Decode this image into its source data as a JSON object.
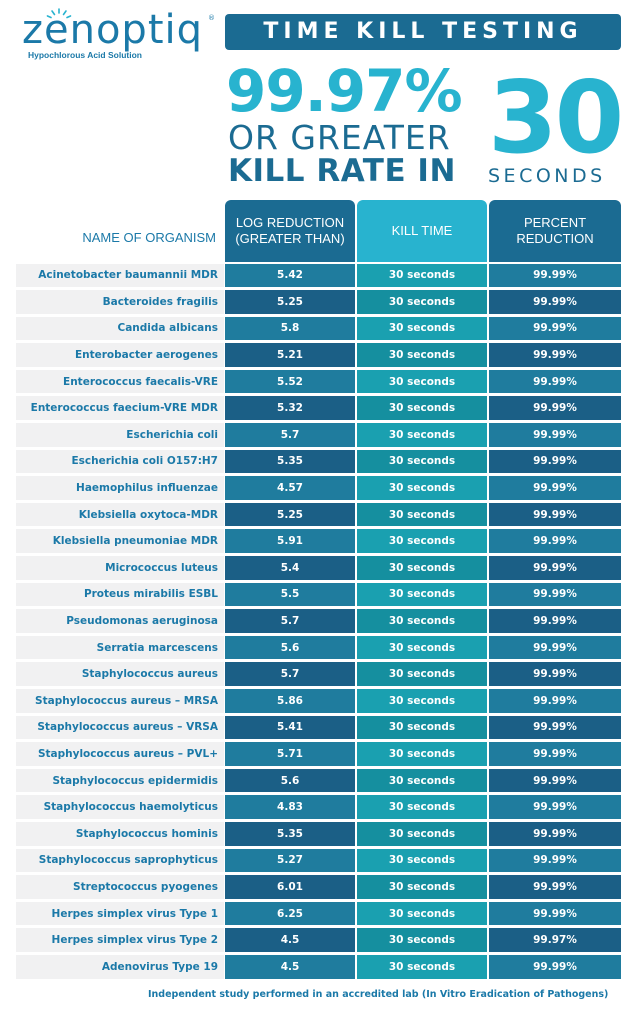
{
  "brand": {
    "logo_text": "zenoptiq",
    "tm": "®",
    "tagline": "Hypochlorous Acid Solution"
  },
  "header": {
    "title": "TIME KILL TESTING",
    "percent": "99.97%",
    "or_greater": "OR GREATER",
    "kill_rate_in": "KILL RATE IN",
    "thirty": "30",
    "seconds": "SECONDS"
  },
  "table": {
    "headers": {
      "organism": "NAME OF ORGANISM",
      "log_reduction": "LOG REDUCTION (GREATER THAN)",
      "kill_time": "KILL TIME",
      "percent_reduction": "PERCENT REDUCTION"
    },
    "rows": [
      {
        "organism": "Acinetobacter baumannii MDR",
        "log": "5.42",
        "time": "30 seconds",
        "pct": "99.99%"
      },
      {
        "organism": "Bacteroides fragilis",
        "log": "5.25",
        "time": "30 seconds",
        "pct": "99.99%"
      },
      {
        "organism": "Candida albicans",
        "log": "5.8",
        "time": "30 seconds",
        "pct": "99.99%"
      },
      {
        "organism": "Enterobacter aerogenes",
        "log": "5.21",
        "time": "30 seconds",
        "pct": "99.99%"
      },
      {
        "organism": "Enterococcus faecalis-VRE",
        "log": "5.52",
        "time": "30 seconds",
        "pct": "99.99%"
      },
      {
        "organism": "Enterococcus faecium-VRE MDR",
        "log": "5.32",
        "time": "30 seconds",
        "pct": "99.99%"
      },
      {
        "organism": "Escherichia coli",
        "log": "5.7",
        "time": "30 seconds",
        "pct": "99.99%"
      },
      {
        "organism": "Escherichia coli O157:H7",
        "log": "5.35",
        "time": "30 seconds",
        "pct": "99.99%"
      },
      {
        "organism": "Haemophilus influenzae",
        "log": "4.57",
        "time": "30 seconds",
        "pct": "99.99%"
      },
      {
        "organism": "Klebsiella oxytoca-MDR",
        "log": "5.25",
        "time": "30 seconds",
        "pct": "99.99%"
      },
      {
        "organism": "Klebsiella pneumoniae MDR",
        "log": "5.91",
        "time": "30 seconds",
        "pct": "99.99%"
      },
      {
        "organism": "Micrococcus luteus",
        "log": "5.4",
        "time": "30 seconds",
        "pct": "99.99%"
      },
      {
        "organism": "Proteus mirabilis ESBL",
        "log": "5.5",
        "time": "30 seconds",
        "pct": "99.99%"
      },
      {
        "organism": "Pseudomonas aeruginosa",
        "log": "5.7",
        "time": "30 seconds",
        "pct": "99.99%"
      },
      {
        "organism": "Serratia marcescens",
        "log": "5.6",
        "time": "30 seconds",
        "pct": "99.99%"
      },
      {
        "organism": "Staphylococcus aureus",
        "log": "5.7",
        "time": "30 seconds",
        "pct": "99.99%"
      },
      {
        "organism": "Staphylococcus aureus – MRSA",
        "log": "5.86",
        "time": "30 seconds",
        "pct": "99.99%"
      },
      {
        "organism": "Staphylococcus aureus – VRSA",
        "log": "5.41",
        "time": "30 seconds",
        "pct": "99.99%"
      },
      {
        "organism": "Staphylococcus aureus – PVL+",
        "log": "5.71",
        "time": "30 seconds",
        "pct": "99.99%"
      },
      {
        "organism": "Staphylococcus epidermidis",
        "log": "5.6",
        "time": "30 seconds",
        "pct": "99.99%"
      },
      {
        "organism": "Staphylococcus haemolyticus",
        "log": "4.83",
        "time": "30 seconds",
        "pct": "99.99%"
      },
      {
        "organism": "Staphylococcus hominis",
        "log": "5.35",
        "time": "30 seconds",
        "pct": "99.99%"
      },
      {
        "organism": "Staphylococcus saprophyticus",
        "log": "5.27",
        "time": "30 seconds",
        "pct": "99.99%"
      },
      {
        "organism": "Streptococcus pyogenes",
        "log": "6.01",
        "time": "30 seconds",
        "pct": "99.99%"
      },
      {
        "organism": "Herpes simplex virus Type 1",
        "log": "6.25",
        "time": "30 seconds",
        "pct": "99.99%"
      },
      {
        "organism": "Herpes simplex virus Type 2",
        "log": "4.5",
        "time": "30 seconds",
        "pct": "99.97%"
      },
      {
        "organism": "Adenovirus Type 19",
        "log": "4.5",
        "time": "30 seconds",
        "pct": "99.99%"
      }
    ]
  },
  "footnote": "Independent study performed in an accredited lab (In Vitro Eradication of Pathogens)",
  "colors": {
    "dark_blue": "#1b6b92",
    "bright_cyan": "#28b3cf",
    "row_dark": "#1b5f86",
    "row_teal": "#1aa0b0",
    "name_bg": "#f1f1f2"
  }
}
